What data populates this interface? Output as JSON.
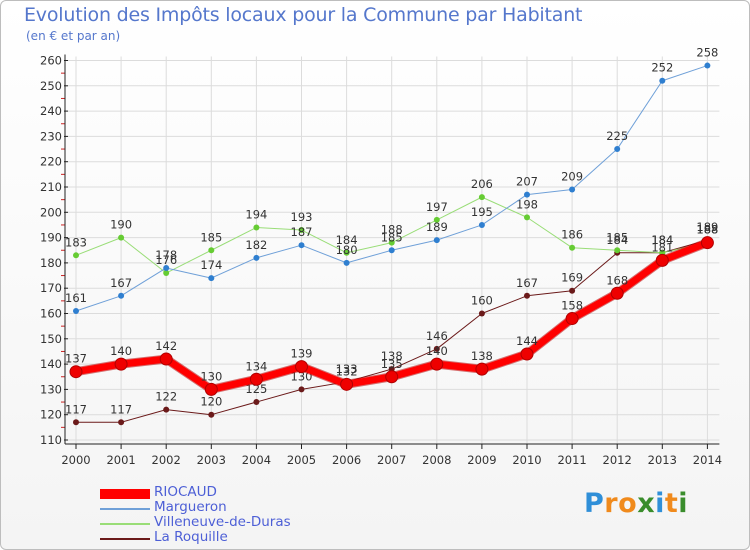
{
  "title": "Evolution des Impôts locaux pour la Commune par Habitant",
  "subtitle": "(en € et par an)",
  "logo": {
    "letters": [
      {
        "ch": "P",
        "color": "#2f8fd8"
      },
      {
        "ch": "r",
        "color": "#f08a1c"
      },
      {
        "ch": "o",
        "color": "#f08a1c"
      },
      {
        "ch": "x",
        "color": "#3a8d2c"
      },
      {
        "ch": "i",
        "color": "#2f8fd8"
      },
      {
        "ch": "t",
        "color": "#f08a1c"
      },
      {
        "ch": "i",
        "color": "#3a8d2c"
      }
    ]
  },
  "chart_data": {
    "type": "line",
    "title": "Evolution des Impôts locaux pour la Commune par Habitant",
    "subtitle": "(en € et par an)",
    "xlabel": "",
    "ylabel": "",
    "x": [
      "2000",
      "2001",
      "2002",
      "2003",
      "2004",
      "2005",
      "2006",
      "2007",
      "2008",
      "2009",
      "2010",
      "2011",
      "2012",
      "2013",
      "2014"
    ],
    "ylim": [
      110,
      260
    ],
    "yticks": [
      "110",
      "120",
      "130",
      "140",
      "150",
      "160",
      "170",
      "180",
      "190",
      "200",
      "210",
      "220",
      "230",
      "240",
      "250",
      "260"
    ],
    "grid": true,
    "legend_position": "bottom-left",
    "series": [
      {
        "name": "La Roquille",
        "color": "#6b1a1a",
        "marker": "#6b1a1a",
        "width": 1,
        "values": [
          117,
          117,
          122,
          120,
          125,
          130,
          133,
          138,
          146,
          160,
          167,
          169,
          184,
          184,
          189
        ]
      },
      {
        "name": "Villeneuve-de-Duras",
        "color": "#99dd77",
        "marker": "#66cc33",
        "width": 1,
        "values": [
          183,
          190,
          176,
          185,
          194,
          193,
          184,
          188,
          197,
          206,
          198,
          186,
          185,
          184,
          188
        ]
      },
      {
        "name": "Margueron",
        "color": "#6fa0d8",
        "marker": "#2f7fd0",
        "width": 1,
        "values": [
          161,
          167,
          178,
          174,
          182,
          187,
          180,
          185,
          189,
          195,
          207,
          209,
          225,
          252,
          258
        ]
      },
      {
        "name": "RIOCAUD",
        "color": "#ff0000",
        "marker": "#ee0000",
        "width": 7,
        "values": [
          137,
          140,
          142,
          130,
          134,
          139,
          132,
          135,
          140,
          138,
          144,
          158,
          168,
          181,
          188
        ]
      }
    ]
  }
}
